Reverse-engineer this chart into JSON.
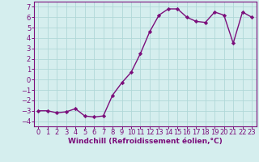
{
  "x": [
    0,
    1,
    2,
    3,
    4,
    5,
    6,
    7,
    8,
    9,
    10,
    11,
    12,
    13,
    14,
    15,
    16,
    17,
    18,
    19,
    20,
    21,
    22,
    23
  ],
  "y": [
    -3.0,
    -3.0,
    -3.2,
    -3.1,
    -2.8,
    -3.5,
    -3.6,
    -3.5,
    -1.5,
    -0.3,
    0.7,
    2.5,
    4.6,
    6.2,
    6.8,
    6.8,
    6.0,
    5.6,
    5.5,
    6.5,
    6.2,
    3.5,
    6.5,
    6.0
  ],
  "line_color": "#7b0e7b",
  "marker": "D",
  "markersize": 2.2,
  "linewidth": 1.0,
  "xlabel": "Windchill (Refroidissement éolien,°C)",
  "xlim": [
    -0.5,
    23.5
  ],
  "ylim": [
    -4.5,
    7.5
  ],
  "yticks": [
    -4,
    -3,
    -2,
    -1,
    0,
    1,
    2,
    3,
    4,
    5,
    6,
    7
  ],
  "xticks": [
    0,
    1,
    2,
    3,
    4,
    5,
    6,
    7,
    8,
    9,
    10,
    11,
    12,
    13,
    14,
    15,
    16,
    17,
    18,
    19,
    20,
    21,
    22,
    23
  ],
  "bg_color": "#d5eeee",
  "grid_color": "#b0d8d8",
  "line_border_color": "#7b0e7b",
  "tick_color": "#7b0e7b",
  "label_color": "#7b0e7b",
  "xlabel_fontsize": 6.5,
  "tick_fontsize": 6.0
}
